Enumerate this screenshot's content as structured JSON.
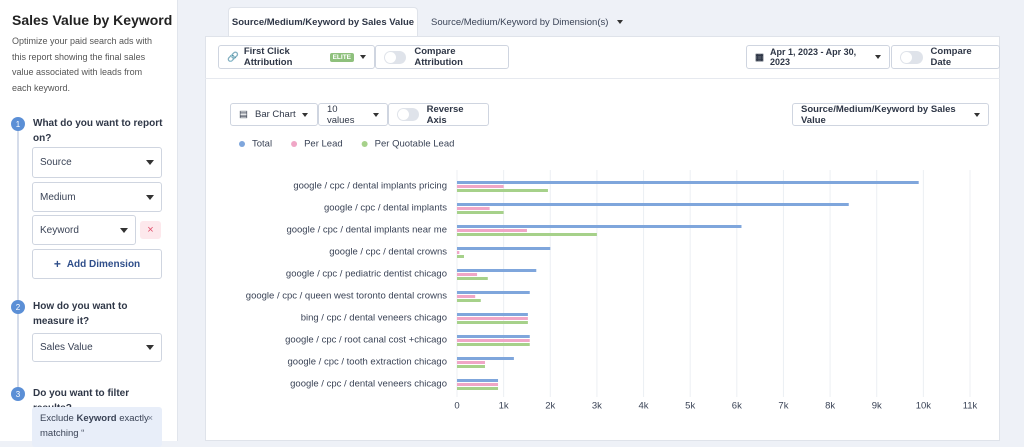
{
  "sidebar": {
    "title": "Sales Value by Keyword",
    "description": "Optimize your paid search ads with this report showing the final sales value associated with leads from each keyword.",
    "steps": [
      {
        "number": 1,
        "question": "What do you want to report on?"
      },
      {
        "number": 2,
        "question": "How do you want to measure it?"
      },
      {
        "number": 3,
        "question": "Do you want to filter results?"
      }
    ],
    "dimensions": [
      "Source",
      "Medium",
      "Keyword"
    ],
    "add_dimension": "Add Dimension",
    "measure": "Sales Value",
    "filter": {
      "prefix": "Exclude",
      "field": "Keyword",
      "rest": "exactly matching “"
    }
  },
  "tabs": [
    "Source/Medium/Keyword by Sales Value",
    "Source/Medium/Keyword by Dimension(s)"
  ],
  "toolbar": {
    "attribution": "First Click Attribution",
    "badge": "ELITE",
    "compare_attribution": "Compare Attribution",
    "date_range": "Apr 1, 2023 - Apr 30, 2023",
    "compare_date": "Compare Date"
  },
  "chart_controls": {
    "chart_type": "Bar Chart",
    "value_count": "10 values",
    "reverse_axis": "Reverse Axis",
    "report": "Source/Medium/Keyword by Sales Value"
  },
  "chart_data": {
    "type": "hbar",
    "categories": [
      "google / cpc / dental implants pricing",
      "google / cpc / dental implants",
      "google / cpc / dental implants near me",
      "google / cpc / dental crowns",
      "google / cpc / pediatric dentist chicago",
      "google / cpc / queen west toronto dental crowns",
      "bing / cpc / dental veneers chicago",
      "google / cpc / root canal cost +chicago",
      "google / cpc / tooth extraction chicago",
      "google / cpc / dental veneers chicago"
    ],
    "series": [
      {
        "name": "Total",
        "color": "#7fa6dc",
        "values": [
          9900,
          8400,
          6100,
          2000,
          1700,
          1560,
          1520,
          1560,
          1220,
          880
        ]
      },
      {
        "name": "Per Lead",
        "color": "#f0a6c6",
        "values": [
          1000,
          700,
          1500,
          50,
          430,
          390,
          1520,
          1560,
          600,
          880
        ]
      },
      {
        "name": "Per Quotable Lead",
        "color": "#a6d18a",
        "values": [
          1950,
          1000,
          3000,
          150,
          660,
          510,
          1520,
          1560,
          600,
          880
        ]
      }
    ],
    "xlim": [
      0,
      11000
    ],
    "xticks": [
      0,
      {
        "value": 1000,
        "label": "1k"
      },
      {
        "value": 2000,
        "label": "2k"
      },
      {
        "value": 3000,
        "label": "3k"
      },
      {
        "value": 4000,
        "label": "4k"
      },
      {
        "value": 5000,
        "label": "5k"
      },
      {
        "value": 6000,
        "label": "6k"
      },
      {
        "value": 7000,
        "label": "7k"
      },
      {
        "value": 8000,
        "label": "8k"
      },
      {
        "value": 9000,
        "label": "9k"
      },
      {
        "value": 10000,
        "label": "10k"
      },
      {
        "value": 11000,
        "label": "11k"
      }
    ],
    "grid": true,
    "legend": "top-left"
  }
}
